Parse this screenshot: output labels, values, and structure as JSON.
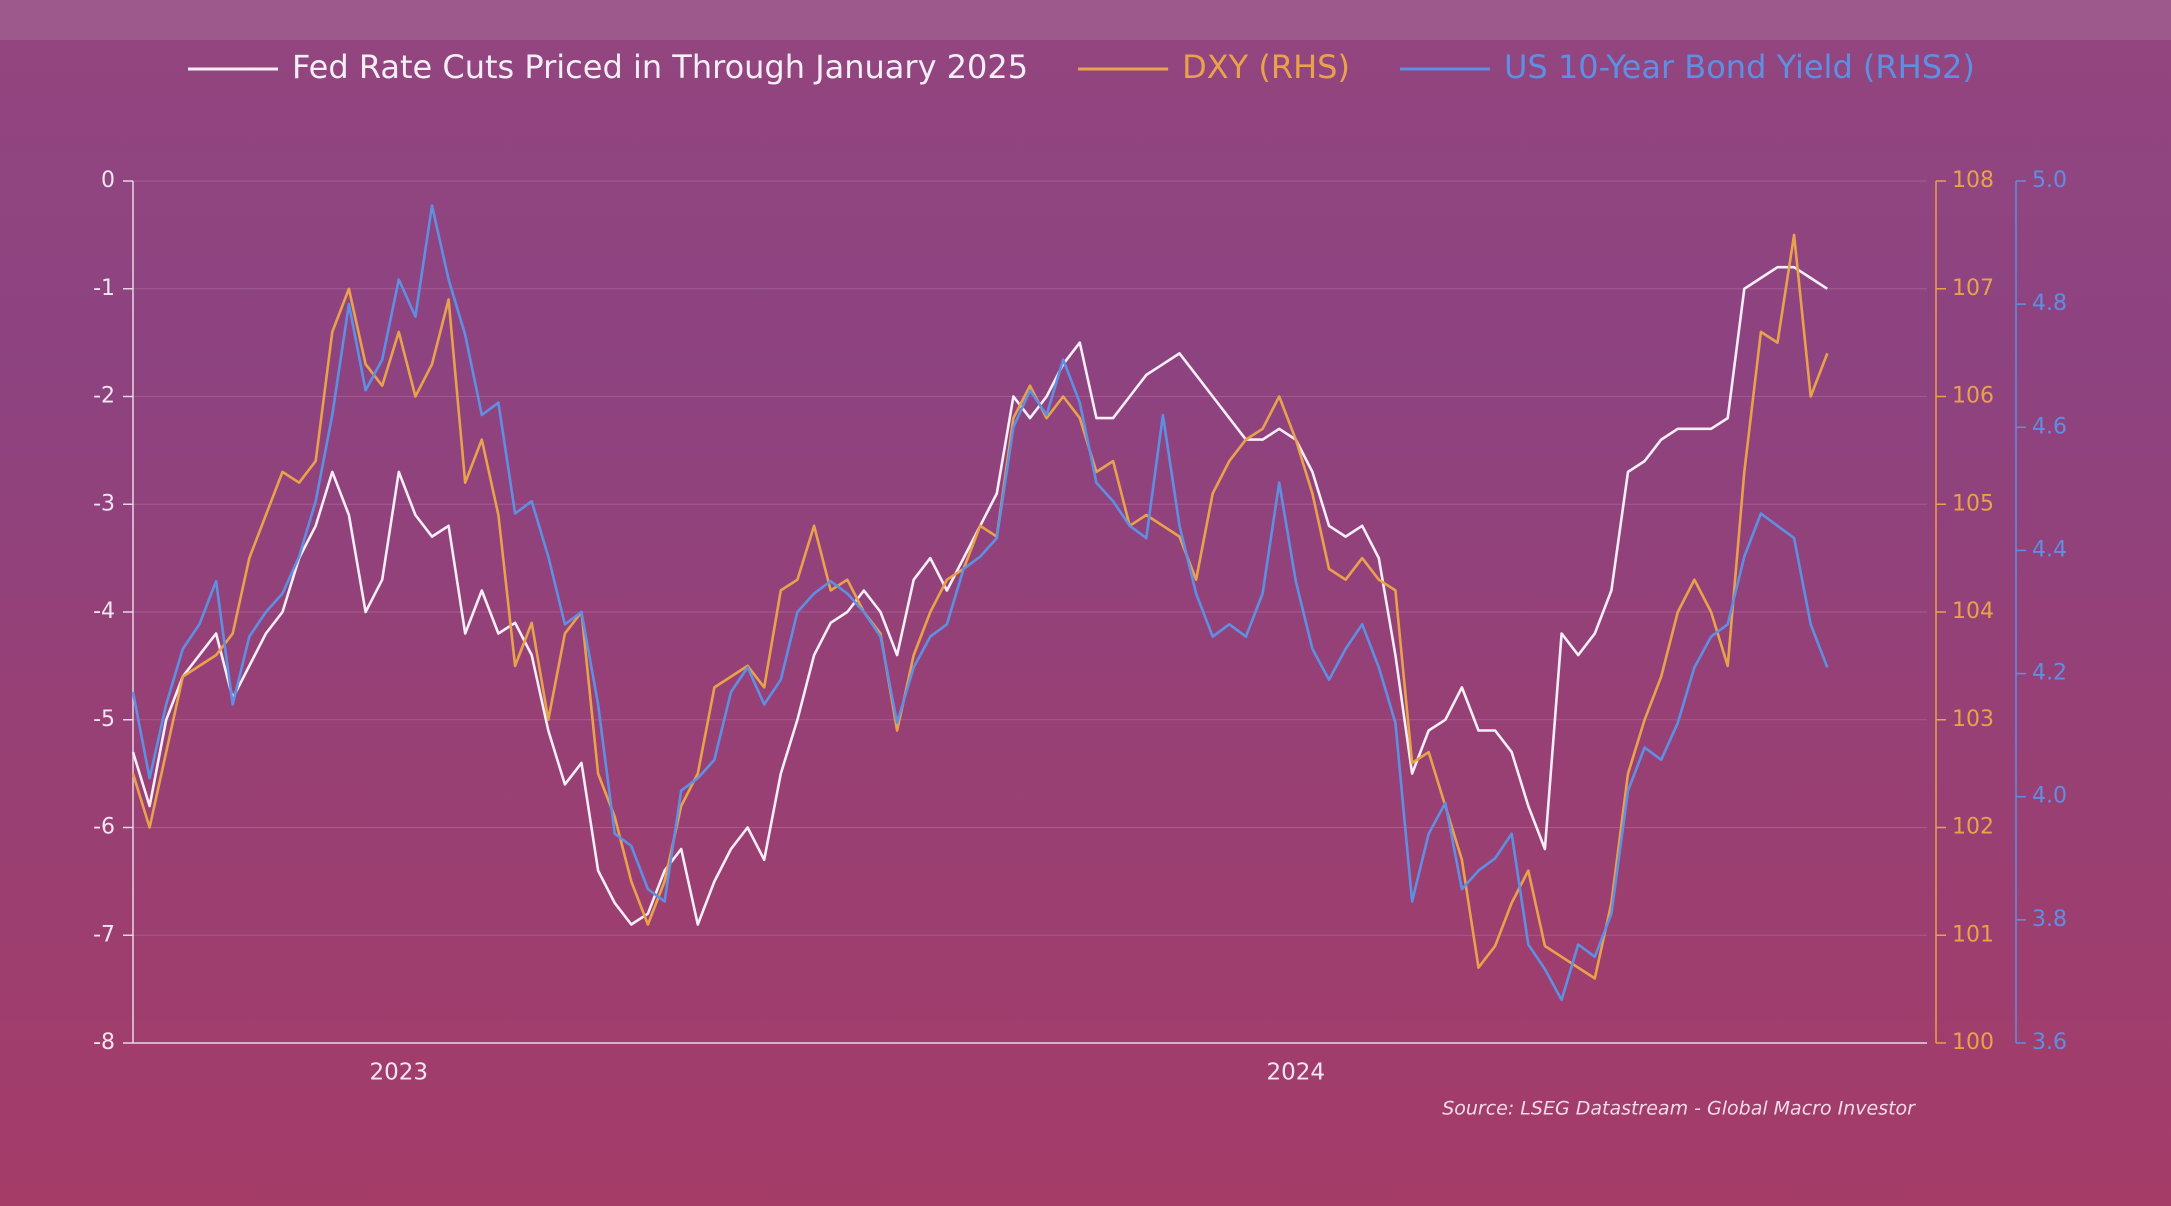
{
  "chart_data": {
    "type": "line",
    "categories": [
      null,
      null,
      null,
      null,
      null,
      null,
      null,
      null,
      null,
      null,
      null,
      null,
      null,
      null,
      null,
      null,
      "2023",
      null,
      null,
      null,
      null,
      null,
      null,
      null,
      null,
      null,
      null,
      null,
      null,
      null,
      null,
      null,
      null,
      null,
      null,
      null,
      null,
      null,
      null,
      null,
      null,
      null,
      null,
      null,
      null,
      null,
      null,
      null,
      null,
      null,
      null,
      null,
      null,
      null,
      null,
      null,
      null,
      null,
      null,
      null,
      null,
      null,
      null,
      null,
      null,
      null,
      null,
      null,
      null,
      null,
      "2024",
      null,
      null,
      null,
      null,
      null,
      null,
      null,
      null,
      null,
      null,
      null,
      null,
      null,
      null,
      null,
      null,
      null,
      null,
      null,
      null,
      null,
      null,
      null,
      null,
      null,
      null,
      null,
      null,
      null,
      null,
      null,
      null
    ],
    "series": [
      {
        "name": "Fed Rate Cuts Priced in Through January 2025",
        "color": "#f6eef6",
        "values": [
          -5.3,
          -5.8,
          -5.0,
          -4.6,
          -4.4,
          -4.2,
          -4.8,
          -4.5,
          -4.2,
          -4.0,
          -3.5,
          -3.2,
          -2.7,
          -3.1,
          -4.0,
          -3.7,
          -2.7,
          -3.1,
          -3.3,
          -3.2,
          -4.2,
          -3.8,
          -4.2,
          -4.1,
          -4.4,
          -5.1,
          -5.6,
          -5.4,
          -6.4,
          -6.7,
          -6.9,
          -6.8,
          -6.4,
          -6.2,
          -6.9,
          -6.5,
          -6.2,
          -6.0,
          -6.3,
          -5.5,
          -5.0,
          -4.4,
          -4.1,
          -4.0,
          -3.8,
          -4.0,
          -4.4,
          -3.7,
          -3.5,
          -3.8,
          -3.5,
          -3.2,
          -2.9,
          -2.0,
          -2.2,
          -2.0,
          -1.7,
          -1.5,
          -2.2,
          -2.2,
          -2.0,
          -1.8,
          -1.7,
          -1.6,
          -1.8,
          -2.0,
          -2.2,
          -2.4,
          -2.4,
          -2.3,
          -2.4,
          -2.7,
          -3.2,
          -3.3,
          -3.2,
          -3.5,
          -4.4,
          -5.5,
          -5.1,
          -5.0,
          -4.7,
          -5.1,
          -5.1,
          -5.3,
          -5.8,
          -6.2,
          -4.2,
          -4.4,
          -4.2,
          -3.8,
          -2.7,
          -2.6,
          -2.4,
          -2.3,
          -2.3,
          -2.3,
          -2.2,
          -1.0,
          -0.9,
          -0.8,
          -0.8,
          -0.9,
          -1.0
        ]
      },
      {
        "name": "DXY (RHS)",
        "color": "#e9a24c",
        "axis": "y2",
        "values": [
          102.5,
          102.0,
          102.7,
          103.4,
          103.5,
          103.6,
          103.8,
          104.5,
          104.9,
          105.3,
          105.2,
          105.4,
          106.6,
          107.0,
          106.3,
          106.1,
          106.6,
          106.0,
          106.3,
          106.9,
          105.2,
          105.6,
          104.9,
          103.5,
          103.9,
          103.0,
          103.8,
          104.0,
          102.5,
          102.1,
          101.5,
          101.1,
          101.5,
          102.2,
          102.5,
          103.3,
          103.4,
          103.5,
          103.3,
          104.2,
          104.3,
          104.8,
          104.2,
          104.3,
          104.0,
          103.8,
          102.9,
          103.6,
          104.0,
          104.3,
          104.4,
          104.8,
          104.7,
          105.8,
          106.1,
          105.8,
          106.0,
          105.8,
          105.3,
          105.4,
          104.8,
          104.9,
          104.8,
          104.7,
          104.3,
          105.1,
          105.4,
          105.6,
          105.7,
          106.0,
          105.6,
          105.1,
          104.4,
          104.3,
          104.5,
          104.3,
          104.2,
          102.6,
          102.7,
          102.2,
          101.7,
          100.7,
          100.9,
          101.3,
          101.6,
          100.9,
          100.8,
          100.7,
          100.6,
          101.3,
          102.5,
          103.0,
          103.4,
          104.0,
          104.3,
          104.0,
          103.5,
          105.3,
          106.6,
          106.5,
          107.5,
          106.0,
          106.4
        ]
      },
      {
        "name": "US 10-Year Bond Yield (RHS2)",
        "color": "#5f8fe2",
        "axis": "y3",
        "values": [
          4.17,
          4.03,
          4.15,
          4.24,
          4.28,
          4.35,
          4.15,
          4.26,
          4.3,
          4.33,
          4.39,
          4.48,
          4.62,
          4.8,
          4.66,
          4.71,
          4.84,
          4.78,
          4.96,
          4.84,
          4.75,
          4.62,
          4.64,
          4.46,
          4.48,
          4.39,
          4.28,
          4.3,
          4.15,
          3.94,
          3.92,
          3.85,
          3.83,
          4.01,
          4.03,
          4.06,
          4.17,
          4.21,
          4.15,
          4.19,
          4.3,
          4.33,
          4.35,
          4.33,
          4.3,
          4.26,
          4.12,
          4.21,
          4.26,
          4.28,
          4.37,
          4.39,
          4.42,
          4.6,
          4.66,
          4.62,
          4.71,
          4.64,
          4.51,
          4.48,
          4.44,
          4.42,
          4.62,
          4.44,
          4.33,
          4.26,
          4.28,
          4.26,
          4.33,
          4.51,
          4.35,
          4.24,
          4.19,
          4.24,
          4.28,
          4.21,
          4.12,
          3.83,
          3.94,
          3.99,
          3.85,
          3.88,
          3.9,
          3.94,
          3.76,
          3.72,
          3.67,
          3.76,
          3.74,
          3.81,
          4.01,
          4.08,
          4.06,
          4.12,
          4.21,
          4.26,
          4.28,
          4.39,
          4.46,
          4.44,
          4.42,
          4.28,
          4.21
        ]
      }
    ],
    "ylim": [
      -8,
      0
    ],
    "yticks": [
      -8,
      -7,
      -6,
      -5,
      -4,
      -3,
      -2,
      -1,
      0
    ],
    "y2lim": [
      100,
      108
    ],
    "y2ticks": [
      100,
      101,
      102,
      103,
      104,
      105,
      106,
      107,
      108
    ],
    "y3lim": [
      3.6,
      5.0
    ],
    "y3ticks": [
      3.6,
      3.8,
      {
        "value": 4.0,
        "label": "4.0"
      },
      4.2,
      4.4,
      4.6,
      4.8,
      {
        "value": 5.0,
        "label": "5.0"
      }
    ],
    "grid": true,
    "annotation": "Source: LSEG Datastream - Global Macro Investor"
  }
}
